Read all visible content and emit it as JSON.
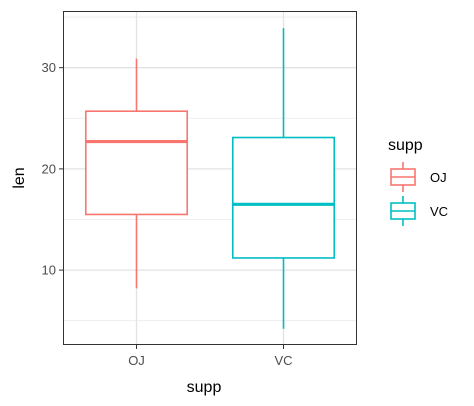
{
  "chart_data": {
    "type": "boxplot",
    "xlabel": "supp",
    "ylabel": "len",
    "categories": [
      "OJ",
      "VC"
    ],
    "ylim": [
      2.6,
      35.6
    ],
    "yticks": [
      10,
      20,
      30
    ],
    "grid": true,
    "legend": {
      "title": "supp",
      "placement": "right",
      "entries": [
        "OJ",
        "VC"
      ]
    },
    "series": [
      {
        "name": "OJ",
        "color": "#F8766D",
        "min": 8.2,
        "q1": 15.5,
        "median": 22.7,
        "q3": 25.7,
        "max": 30.9
      },
      {
        "name": "VC",
        "color": "#00BFC4",
        "min": 4.2,
        "q1": 11.2,
        "median": 16.5,
        "q3": 23.1,
        "max": 33.9
      }
    ]
  }
}
